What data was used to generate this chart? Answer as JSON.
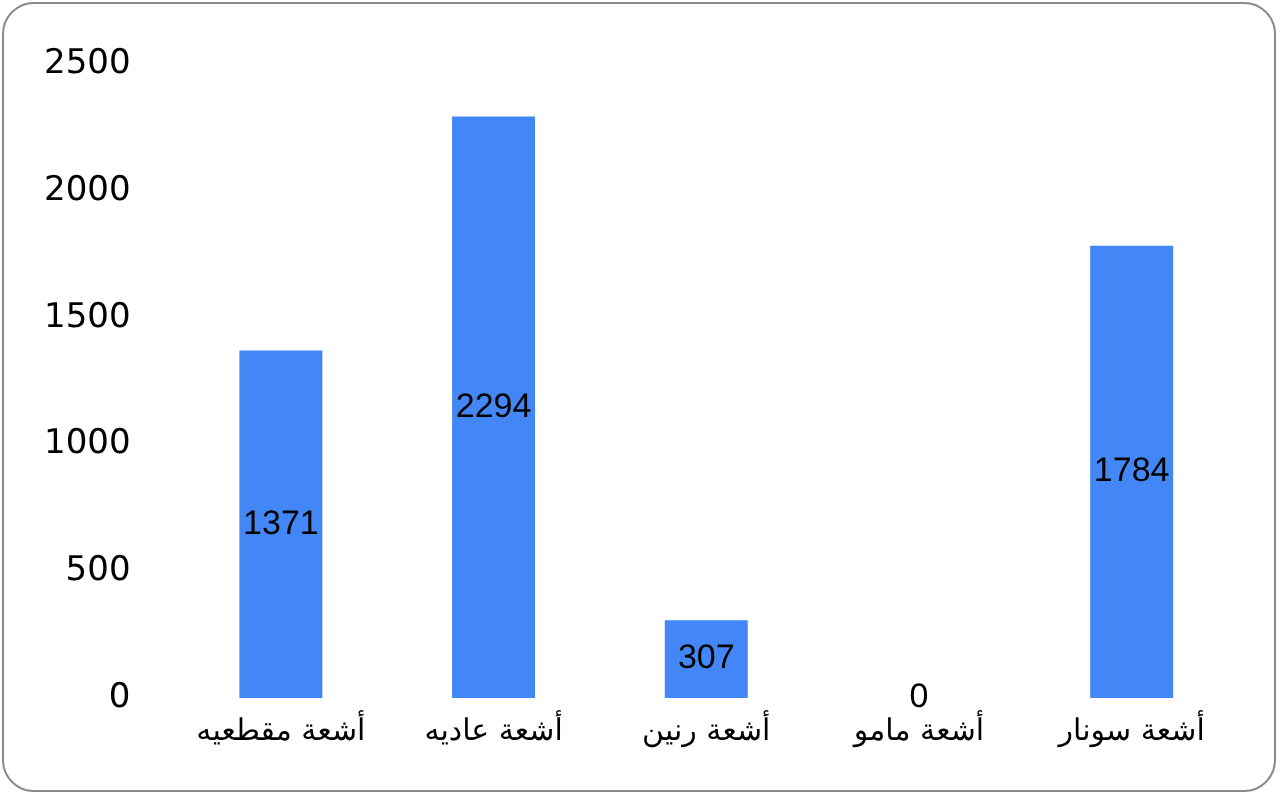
{
  "chart_data": {
    "type": "bar",
    "categories": [
      "أشعة مقطعيه",
      "أشعة عاديه",
      "أشعة رنين",
      "أشعة مامو",
      "أشعة سونار"
    ],
    "values": [
      1371,
      2294,
      307,
      0,
      1784
    ],
    "color": "#4287f5",
    "ylim": [
      0,
      2500
    ],
    "yticks": [
      0,
      500,
      1000,
      1500,
      2000,
      2500
    ],
    "grid": false,
    "legend": false,
    "data_labels": true
  }
}
